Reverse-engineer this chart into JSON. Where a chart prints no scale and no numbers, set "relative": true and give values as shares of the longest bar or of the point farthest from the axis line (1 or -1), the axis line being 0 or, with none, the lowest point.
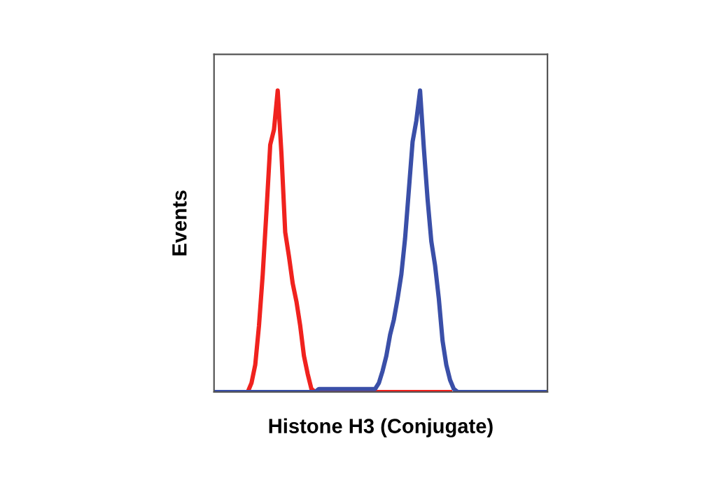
{
  "chart_data": {
    "type": "line",
    "relative": true,
    "xlabel": "Histone H3 (Conjugate)",
    "ylabel": "Events",
    "grid": false,
    "legend": false,
    "marker": "none",
    "line_style": "solid",
    "categories": [
      null,
      null,
      null,
      null,
      null,
      null,
      null,
      null,
      null,
      null,
      null,
      null,
      null,
      null,
      null,
      null,
      null,
      null,
      null,
      null,
      null,
      null,
      null,
      null,
      null,
      null,
      null,
      null,
      null,
      null,
      null,
      null,
      null,
      null,
      null,
      null,
      null,
      null,
      null,
      null,
      null,
      null,
      null,
      null,
      null,
      null,
      null,
      null,
      null,
      null,
      null,
      null,
      null,
      null,
      null,
      null,
      null,
      null,
      null,
      null,
      null,
      null,
      null,
      null,
      null,
      null,
      null,
      null,
      null,
      null,
      null,
      null,
      null,
      null,
      null,
      null,
      null,
      null,
      null,
      null,
      null,
      null,
      null,
      null,
      null,
      null,
      null,
      null,
      null,
      null
    ],
    "series": [
      {
        "color": "#f0221e",
        "values": [
          null,
          null,
          null,
          null,
          null,
          null,
          null,
          null,
          null,
          0,
          0.03,
          0.09,
          0.22,
          0.39,
          0.6,
          0.82,
          0.87,
          1.0,
          0.79,
          0.53,
          0.45,
          0.36,
          0.3,
          0.22,
          0.12,
          0.06,
          0.01,
          0,
          0,
          0,
          0,
          0,
          0,
          0,
          0,
          0,
          0,
          0,
          0,
          0,
          0,
          0,
          0,
          0,
          0,
          0,
          0,
          0,
          0,
          0,
          0,
          0,
          0,
          0,
          0,
          0,
          0,
          0,
          0,
          0,
          0,
          0,
          0,
          0,
          null,
          null,
          null,
          null,
          null,
          null,
          null,
          null,
          null,
          null,
          null,
          null,
          null,
          null,
          null,
          null,
          null,
          null,
          null,
          null,
          null,
          null,
          null,
          null,
          null,
          null
        ]
      },
      {
        "color": "#3a4fa8",
        "values": [
          0,
          0,
          0,
          0,
          0,
          0,
          0,
          0,
          0,
          0,
          0,
          0,
          0,
          0,
          0,
          0,
          0,
          0,
          0,
          0,
          0,
          0,
          0,
          0,
          0,
          0,
          0,
          0,
          0.01,
          0.01,
          0.01,
          0.01,
          0.01,
          0.01,
          0.01,
          0.01,
          0.01,
          0.01,
          0.01,
          0.01,
          0.01,
          0.01,
          0.01,
          0.01,
          0.03,
          0.07,
          0.12,
          0.19,
          0.24,
          0.31,
          0.39,
          0.51,
          0.67,
          0.83,
          0.9,
          1.0,
          0.81,
          0.64,
          0.5,
          0.42,
          0.31,
          0.17,
          0.09,
          0.04,
          0.01,
          0,
          0,
          0,
          0,
          0,
          0,
          0,
          0,
          0,
          0,
          0,
          0,
          0,
          0,
          0,
          0,
          0,
          0,
          0,
          0,
          0,
          0,
          0,
          0,
          0
        ]
      }
    ]
  }
}
